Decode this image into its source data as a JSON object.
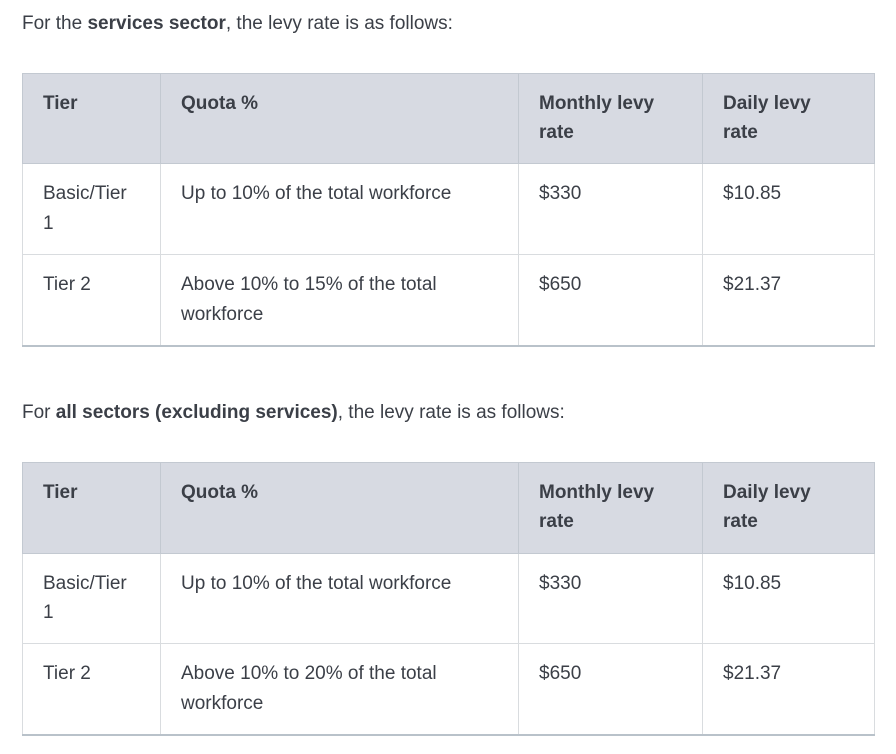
{
  "colors": {
    "text": "#3b3f47",
    "header_bg": "#d7dae2",
    "border_header": "#c3c9d1",
    "border_body": "#d9dcdf",
    "table_bottom": "#b9c2ca",
    "page_bg": "#ffffff"
  },
  "sections": [
    {
      "intro": {
        "prefix": "For the ",
        "bold": "services sector",
        "suffix": ", the levy rate is as follows:"
      },
      "table": {
        "headers": [
          "Tier",
          "Quota %",
          "Monthly levy rate",
          "Daily levy rate"
        ],
        "rows": [
          [
            "Basic/Tier 1",
            "Up to 10% of the total workforce",
            "$330",
            "$10.85"
          ],
          [
            "Tier 2",
            "Above 10% to 15% of the total workforce",
            "$650",
            "$21.37"
          ]
        ]
      }
    },
    {
      "intro": {
        "prefix": "For ",
        "bold": "all sectors (excluding services)",
        "suffix": ", the levy rate is as follows:"
      },
      "table": {
        "headers": [
          "Tier",
          "Quota %",
          "Monthly levy rate",
          "Daily levy rate"
        ],
        "rows": [
          [
            "Basic/Tier 1",
            "Up to 10% of the total workforce",
            "$330",
            "$10.85"
          ],
          [
            "Tier 2",
            "Above 10% to 20% of the total workforce",
            "$650",
            "$21.37"
          ]
        ]
      }
    }
  ]
}
